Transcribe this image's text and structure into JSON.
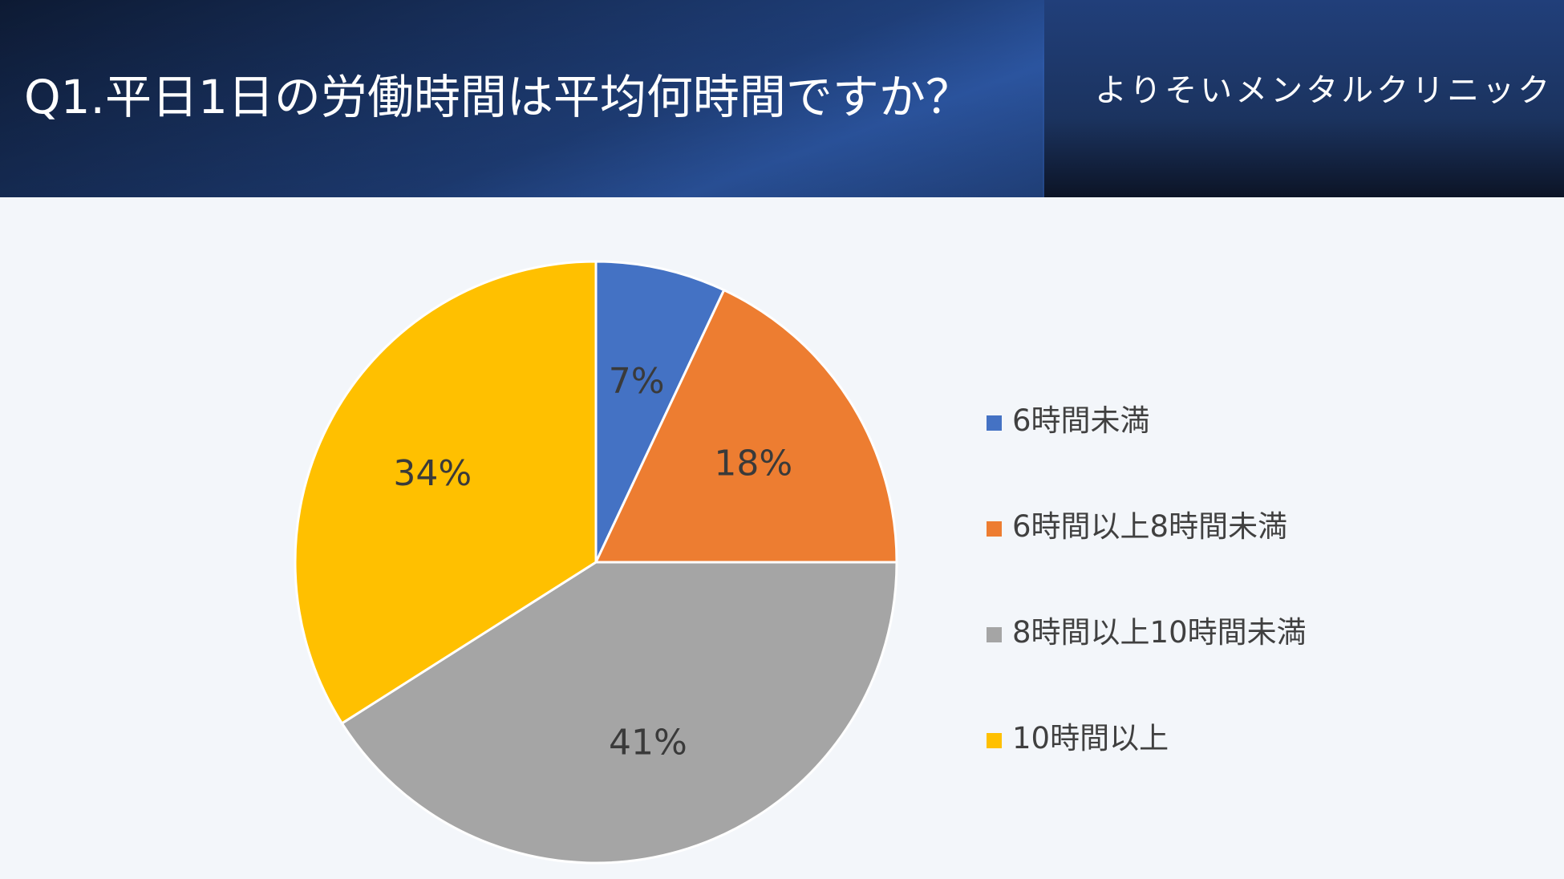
{
  "header": {
    "title": "Q1.平日1日の労働時間は平均何時間ですか？",
    "brand": "よりそいメンタルクリニック"
  },
  "chart_data": {
    "type": "pie",
    "title": "",
    "categories": [
      "6時間未満",
      "6時間以上8時間未満",
      "8時間以上10時間未満",
      "10時間以上"
    ],
    "values": [
      7,
      18,
      41,
      34
    ],
    "labels": [
      "7%",
      "18%",
      "41%",
      "34%"
    ],
    "colors": [
      "#4472c4",
      "#ed7d31",
      "#a5a5a5",
      "#ffc000"
    ],
    "legend": "right"
  }
}
